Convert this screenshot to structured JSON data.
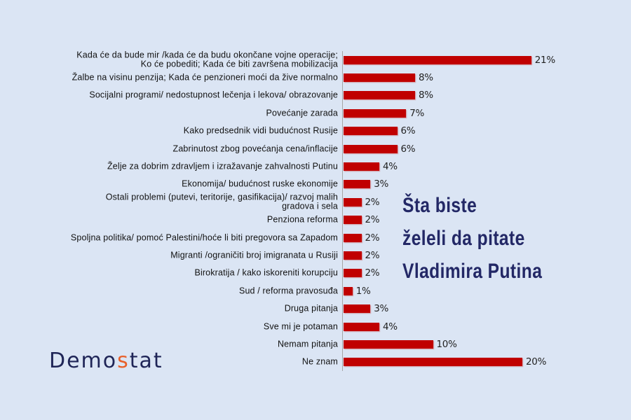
{
  "title": {
    "line1": "Šta biste",
    "line2": "želeli da pitate",
    "line3": "Vladimira Putina"
  },
  "logo": {
    "part1": "Demo",
    "accent": "s",
    "part2": "tat",
    "text_color": "#1f2557",
    "accent_color": "#e8602a"
  },
  "colors": {
    "background": "#dbe5f4",
    "bar": "#c00000",
    "title": "#232866"
  },
  "chart_data": {
    "type": "bar",
    "orientation": "horizontal",
    "title": "Šta biste želeli da pitate Vladimira Putina",
    "xlabel": "",
    "ylabel": "",
    "grid": false,
    "legend": false,
    "unit": "%",
    "xlim": [
      0,
      22
    ],
    "categories": [
      "Kada će da bude mir /kada će da budu okončane vojne operacije; Ko će pobediti; Kada će biti završena mobilizacija",
      "Žalbe na visinu penzija; Kada će penzioneri moći da žive normalno",
      "Socijalni programi/ nedostupnost lečenja i lekova/ obrazovanje",
      "Povećanje zarada",
      "Kako predsednik vidi budućnost Rusije",
      "Zabrinutost zbog povećanja cena/inflacije",
      "Želje za dobrim zdravljem i izražavanje zahvalnosti Putinu",
      "Ekonomija/ budućnost ruske ekonomije",
      "Ostali problemi (putevi, teritorije, gasifikacija)/ razvoj malih gradova i sela",
      "Penziona reforma",
      "Spoljna politika/ pomoć Palestini/hoće li biti pregovora sa Zapadom",
      "Migranti /ograničiti broj imigranata u Rusiji",
      "Birokratija / kako iskoreniti korupciju",
      "Sud / reforma pravosuđa",
      "Druga pitanja",
      "Sve mi je potaman",
      "Nemam pitanja",
      "Ne znam"
    ],
    "values": [
      21,
      8,
      8,
      7,
      6,
      6,
      4,
      3,
      2,
      2,
      2,
      2,
      2,
      1,
      3,
      4,
      10,
      20
    ],
    "value_labels": [
      "21%",
      "8%",
      "8%",
      "7%",
      "6%",
      "6%",
      "4%",
      "3%",
      "2%",
      "2%",
      "2%",
      "2%",
      "2%",
      "1%",
      "3%",
      "4%",
      "10%",
      "20%"
    ],
    "label_lines": [
      [
        "Kada će da bude mir /kada će da budu okončane vojne operacije;",
        "Ko će pobediti; Kada će biti završena mobilizacija"
      ],
      [
        "Žalbe na visinu penzija; Kada će penzioneri moći da žive normalno"
      ],
      [
        "Socijalni programi/ nedostupnost lečenja i lekova/ obrazovanje"
      ],
      [
        "Povećanje zarada"
      ],
      [
        "Kako predsednik vidi budućnost Rusije"
      ],
      [
        "Zabrinutost zbog povećanja cena/inflacije"
      ],
      [
        "Želje za dobrim zdravljem i izražavanje zahvalnosti Putinu"
      ],
      [
        "Ekonomija/ budućnost ruske ekonomije"
      ],
      [
        "Ostali problemi (putevi, teritorije, gasifikacija)/ razvoj malih",
        "gradova i sela"
      ],
      [
        "Penziona reforma"
      ],
      [
        "Spoljna politika/ pomoć Palestini/hoće li biti pregovora sa Zapadom"
      ],
      [
        "Migranti /ograničiti broj imigranata u Rusiji"
      ],
      [
        "Birokratija / kako iskoreniti korupciju"
      ],
      [
        "Sud / reforma pravosuđa"
      ],
      [
        "Druga pitanja"
      ],
      [
        "Sve mi je potaman"
      ],
      [
        "Nemam pitanja"
      ],
      [
        "Ne znam"
      ]
    ]
  }
}
